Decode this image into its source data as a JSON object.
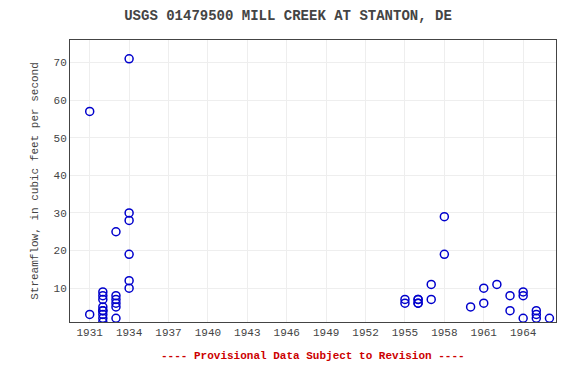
{
  "chart_data": {
    "type": "scatter",
    "title": "USGS 01479500 MILL CREEK AT STANTON, DE",
    "ylabel": "Streamflow, in cubic feet per second",
    "annotations": [
      {
        "text": "---- Provisional Data Subject to Revision ----",
        "color": "#cc0000"
      }
    ],
    "x": [
      1931,
      1931,
      1932,
      1932,
      1932,
      1932,
      1932,
      1932,
      1932,
      1932,
      1932,
      1933,
      1933,
      1933,
      1933,
      1933,
      1933,
      1934,
      1934,
      1934,
      1934,
      1934,
      1934,
      1955,
      1955,
      1956,
      1956,
      1956,
      1956,
      1957,
      1957,
      1958,
      1958,
      1960,
      1961,
      1961,
      1962,
      1963,
      1963,
      1964,
      1964,
      1964,
      1965,
      1965,
      1965,
      1966
    ],
    "values": [
      57,
      3,
      9,
      8,
      7,
      5,
      4,
      4,
      3,
      2,
      1,
      25,
      8,
      7,
      6,
      5,
      2,
      71,
      30,
      28,
      19,
      12,
      10,
      7,
      6,
      7,
      7,
      6,
      6,
      11,
      7,
      29,
      19,
      5,
      10,
      6,
      11,
      8,
      4,
      9,
      8,
      2,
      4,
      3,
      2,
      2
    ],
    "color": "#0000cc",
    "marker": "circle-open",
    "xlim": [
      1929.5,
      1966.5
    ],
    "ylim": [
      1,
      76
    ],
    "xticks": [
      1931,
      1934,
      1937,
      1940,
      1943,
      1946,
      1949,
      1952,
      1955,
      1958,
      1961,
      1964
    ],
    "yticks": [
      10,
      20,
      30,
      40,
      50,
      60,
      70
    ],
    "grid": true
  }
}
